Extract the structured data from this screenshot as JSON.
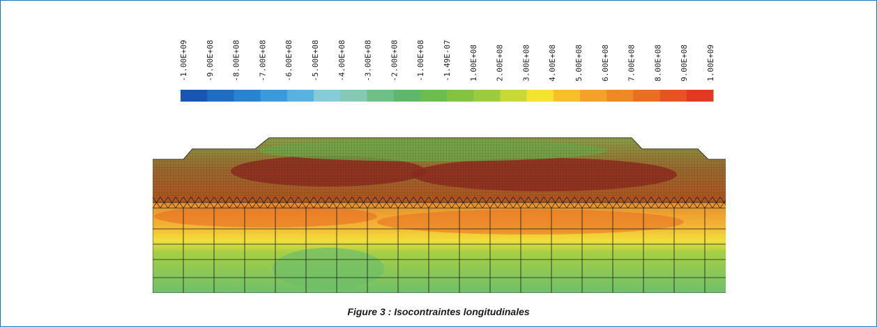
{
  "figure": {
    "colorbar": {
      "labels": [
        "-1.00E+09",
        "-9.00E+08",
        "-8.00E+08",
        "-7.00E+08",
        "-6.00E+08",
        "-5.00E+08",
        "-4.00E+08",
        "-3.00E+08",
        "-2.00E+08",
        "-1.00E+08",
        "-1.49E-07",
        "1.00E+08",
        "2.00E+08",
        "3.00E+08",
        "4.00E+08",
        "5.00E+08",
        "6.00E+08",
        "7.00E+08",
        "8.00E+08",
        "9.00E+08",
        "1.00E+09"
      ],
      "colors": [
        "#1a55b3",
        "#1f6cc3",
        "#2a83cf",
        "#3b9adb",
        "#58b1df",
        "#86cbd8",
        "#86c8b4",
        "#6fbf88",
        "#5eb76b",
        "#6cbc4f",
        "#82c441",
        "#9ccc3e",
        "#c8d838",
        "#f5e332",
        "#f6bf2b",
        "#f3a128",
        "#ef8924",
        "#ea6e22",
        "#e55422",
        "#e03a22"
      ]
    },
    "caption": "Figure 3 : Isocontraintes longitudinales"
  }
}
